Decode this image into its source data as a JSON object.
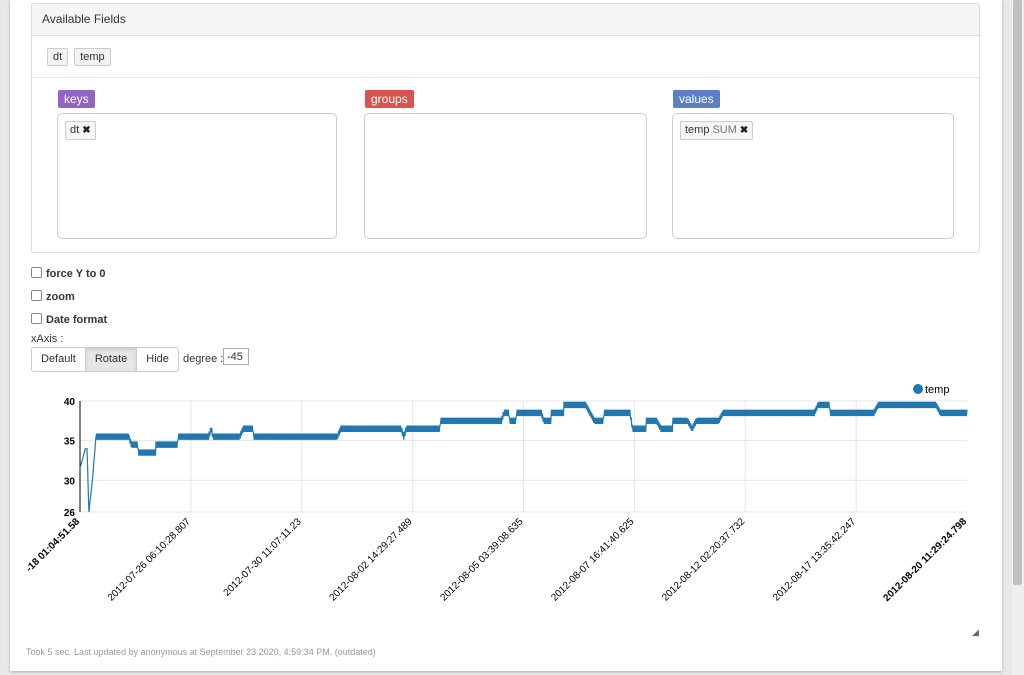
{
  "available_fields": {
    "title": "Available Fields",
    "fields": [
      "dt",
      "temp"
    ]
  },
  "zones": {
    "keys": {
      "label": "keys",
      "color": "#9265c4",
      "items": [
        {
          "name": "dt",
          "agg": ""
        }
      ]
    },
    "groups": {
      "label": "groups",
      "color": "#d9534f",
      "items": []
    },
    "values": {
      "label": "values",
      "color": "#5b80c3",
      "items": [
        {
          "name": "temp",
          "agg": "SUM"
        }
      ]
    }
  },
  "options": {
    "force_y": "force Y to 0",
    "zoom": "zoom",
    "date_format": "Date format"
  },
  "xaxis": {
    "label": "xAxis :",
    "buttons": [
      "Default",
      "Rotate",
      "Hide"
    ],
    "active": "Rotate",
    "degree_label": "degree :",
    "degree_value": "-45"
  },
  "chart_data": {
    "type": "line",
    "series": [
      {
        "name": "temp",
        "color": "#1f77b4"
      }
    ],
    "ylim": [
      26,
      40
    ],
    "yticks": [
      "26",
      "30",
      "35",
      "40"
    ],
    "xticks": [
      "-18 01:04:51.58",
      "2012-07-26 06:10:28.807",
      "2012-07-30 11:07:11.23",
      "2012-08-02 14:29:27.489",
      "2012-08-05 03:39:08.635",
      "2012-08-07 16:41:40.625",
      "2012-08-12 02:20:37.732",
      "2012-08-17 13:35:42.247",
      "2012-08-20 11:29:24.798"
    ],
    "profile": [
      [
        0.0,
        31.5
      ],
      [
        0.006,
        34
      ],
      [
        0.008,
        34
      ],
      [
        0.01,
        26
      ],
      [
        0.014,
        30
      ],
      [
        0.018,
        35.5
      ],
      [
        0.055,
        35.5
      ],
      [
        0.058,
        34.5
      ],
      [
        0.065,
        33.5
      ],
      [
        0.085,
        34.5
      ],
      [
        0.11,
        35.5
      ],
      [
        0.145,
        35.5
      ],
      [
        0.148,
        36.5
      ],
      [
        0.15,
        35.5
      ],
      [
        0.18,
        35.5
      ],
      [
        0.184,
        36.5
      ],
      [
        0.195,
        35.5
      ],
      [
        0.29,
        35.5
      ],
      [
        0.294,
        36.5
      ],
      [
        0.362,
        36.5
      ],
      [
        0.365,
        35.5
      ],
      [
        0.368,
        36.5
      ],
      [
        0.4,
        36.5
      ],
      [
        0.406,
        37.5
      ],
      [
        0.475,
        37.5
      ],
      [
        0.478,
        38.5
      ],
      [
        0.484,
        37.5
      ],
      [
        0.492,
        38.5
      ],
      [
        0.52,
        38.5
      ],
      [
        0.523,
        37.5
      ],
      [
        0.531,
        38.5
      ],
      [
        0.545,
        39.5
      ],
      [
        0.57,
        39.5
      ],
      [
        0.575,
        38.5
      ],
      [
        0.58,
        37.5
      ],
      [
        0.59,
        38.5
      ],
      [
        0.62,
        38.5
      ],
      [
        0.623,
        36.5
      ],
      [
        0.638,
        37.5
      ],
      [
        0.65,
        37.5
      ],
      [
        0.655,
        36.5
      ],
      [
        0.668,
        37.5
      ],
      [
        0.685,
        37.5
      ],
      [
        0.69,
        36.5
      ],
      [
        0.695,
        37.5
      ],
      [
        0.72,
        37.5
      ],
      [
        0.725,
        38.5
      ],
      [
        0.828,
        38.5
      ],
      [
        0.832,
        39.5
      ],
      [
        0.845,
        38.5
      ],
      [
        0.895,
        38.5
      ],
      [
        0.9,
        39.5
      ],
      [
        0.965,
        39.5
      ],
      [
        0.97,
        38.5
      ],
      [
        1.0,
        38.5
      ]
    ]
  },
  "footer": {
    "text": "Took 5 sec. Last updated by anonymous at September 23 2020, 4:59:34 PM. (outdated)"
  }
}
